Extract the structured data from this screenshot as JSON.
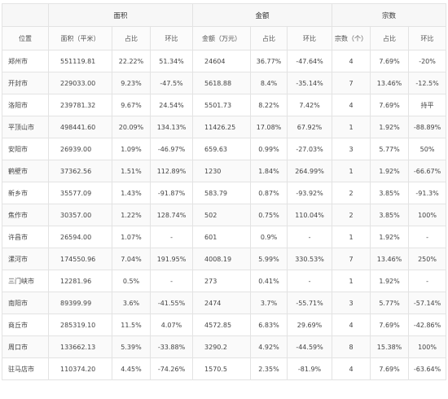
{
  "header": {
    "groups": {
      "area": "面积",
      "amount": "金额",
      "count": "宗数"
    },
    "columns": [
      "位置",
      "面积（平米）",
      "占比",
      "环比",
      "金额（万元）",
      "占比",
      "环比",
      "宗数（个）",
      "占比",
      "环比"
    ]
  },
  "rows": [
    [
      "郑州市",
      "551119.81",
      "22.22%",
      "51.34%",
      "24604",
      "36.77%",
      "-47.64%",
      "4",
      "7.69%",
      "-20%"
    ],
    [
      "开封市",
      "229033.00",
      "9.23%",
      "-47.5%",
      "5618.88",
      "8.4%",
      "-35.14%",
      "7",
      "13.46%",
      "-12.5%"
    ],
    [
      "洛阳市",
      "239781.32",
      "9.67%",
      "24.54%",
      "5501.73",
      "8.22%",
      "7.42%",
      "4",
      "7.69%",
      "持平"
    ],
    [
      "平顶山市",
      "498441.60",
      "20.09%",
      "134.13%",
      "11426.25",
      "17.08%",
      "67.92%",
      "1",
      "1.92%",
      "-88.89%"
    ],
    [
      "安阳市",
      "26939.00",
      "1.09%",
      "-46.97%",
      "659.63",
      "0.99%",
      "-27.03%",
      "3",
      "5.77%",
      "50%"
    ],
    [
      "鹤壁市",
      "37362.56",
      "1.51%",
      "112.89%",
      "1230",
      "1.84%",
      "264.99%",
      "1",
      "1.92%",
      "-66.67%"
    ],
    [
      "新乡市",
      "35577.09",
      "1.43%",
      "-91.87%",
      "583.79",
      "0.87%",
      "-93.92%",
      "2",
      "3.85%",
      "-91.3%"
    ],
    [
      "焦作市",
      "30357.00",
      "1.22%",
      "128.74%",
      "502",
      "0.75%",
      "110.04%",
      "2",
      "3.85%",
      "100%"
    ],
    [
      "许昌市",
      "26594.00",
      "1.07%",
      "-",
      "601",
      "0.9%",
      "-",
      "1",
      "1.92%",
      "-"
    ],
    [
      "漯河市",
      "174550.96",
      "7.04%",
      "191.95%",
      "4008.19",
      "5.99%",
      "330.53%",
      "7",
      "13.46%",
      "250%"
    ],
    [
      "三门峡市",
      "12281.96",
      "0.5%",
      "-",
      "273",
      "0.41%",
      "-",
      "1",
      "1.92%",
      "-"
    ],
    [
      "南阳市",
      "89399.99",
      "3.6%",
      "-41.55%",
      "2474",
      "3.7%",
      "-55.71%",
      "3",
      "5.77%",
      "-57.14%"
    ],
    [
      "商丘市",
      "285319.10",
      "11.5%",
      "4.07%",
      "4572.85",
      "6.83%",
      "29.69%",
      "4",
      "7.69%",
      "-42.86%"
    ],
    [
      "周口市",
      "133662.13",
      "5.39%",
      "-33.88%",
      "3290.2",
      "4.92%",
      "-44.59%",
      "8",
      "15.38%",
      "100%"
    ],
    [
      "驻马店市",
      "110374.20",
      "4.45%",
      "-74.26%",
      "1570.5",
      "2.35%",
      "-81.9%",
      "4",
      "7.69%",
      "-63.64%"
    ]
  ]
}
